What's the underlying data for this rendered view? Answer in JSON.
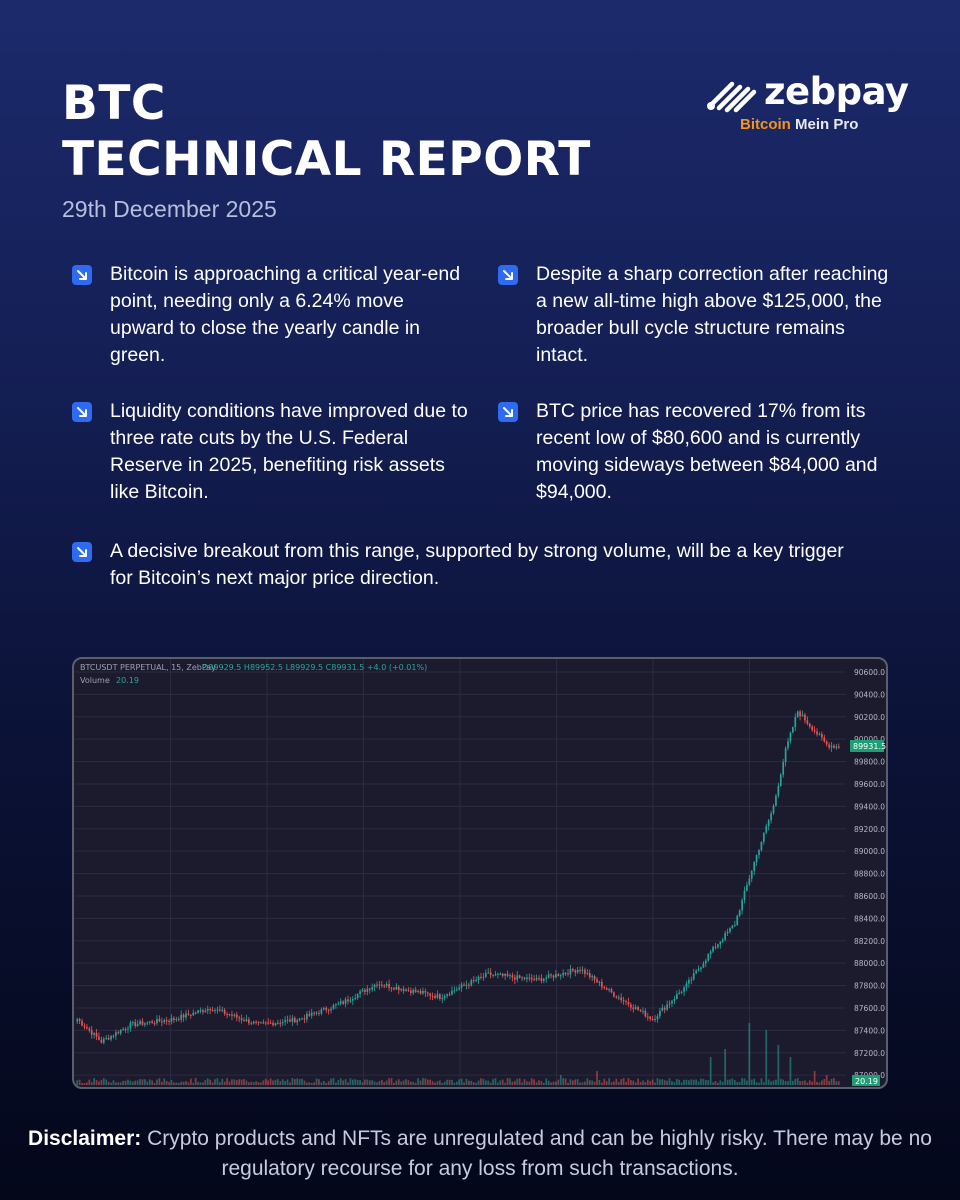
{
  "header": {
    "title_line1": "BTC",
    "title_line2": "TECHNICAL REPORT",
    "date": "29th December 2025"
  },
  "brand": {
    "name": "zebpay",
    "tagline_highlight": "Bitcoin",
    "tagline_rest": " Mein Pro",
    "accent": "#f7931a"
  },
  "bullets": [
    "Bitcoin is approaching a critical year-end point, needing only a 6.24% move upward to close the yearly candle in green.",
    "Despite a sharp correction after reaching a new all-time high above $125,000, the broader bull cycle structure remains intact.",
    "Liquidity conditions have improved due to three rate cuts by the U.S. Federal Reserve in 2025, benefiting risk assets like Bitcoin.",
    "BTC price has recovered 17% from its recent low of $80,600 and is currently moving sideways between $84,000 and $94,000.",
    "A decisive breakout from this range, supported by strong volume, will be a key trigger for Bitcoin’s next major price direction."
  ],
  "bullet_icon": "arrow-down-right-icon",
  "chart_data": {
    "type": "candlestick",
    "header_text": "BTCUSDT PERPETUAL, 15, ZebPay",
    "ohlc_text": "O89929.5 H89952.5 L89929.5 C89931.5 +4.0 (+0.01%)",
    "volume_label": "Volume",
    "volume_value": "20.19",
    "last_price_label": "89931.5",
    "y_ticks": [
      87000,
      87200,
      87400,
      87600,
      87800,
      88000,
      88200,
      88400,
      88600,
      88800,
      89000,
      89200,
      89400,
      89600,
      89800,
      90000,
      90200,
      90400,
      90600
    ],
    "ylim": [
      86930,
      90680
    ],
    "up_color": "#26a69a",
    "down_color": "#ef5350",
    "anchors": [
      [
        0,
        87500
      ],
      [
        10,
        87300
      ],
      [
        22,
        87450
      ],
      [
        40,
        87500
      ],
      [
        55,
        87600
      ],
      [
        75,
        87450
      ],
      [
        92,
        87500
      ],
      [
        110,
        87650
      ],
      [
        124,
        87820
      ],
      [
        150,
        87700
      ],
      [
        170,
        87900
      ],
      [
        190,
        87850
      ],
      [
        208,
        87950
      ],
      [
        220,
        87750
      ],
      [
        238,
        87500
      ],
      [
        252,
        87800
      ],
      [
        262,
        88100
      ],
      [
        272,
        88350
      ],
      [
        280,
        88900
      ],
      [
        288,
        89400
      ],
      [
        293,
        89900
      ],
      [
        298,
        90250
      ],
      [
        304,
        90100
      ],
      [
        310,
        89950
      ],
      [
        315,
        89931.5
      ]
    ],
    "volume_spikes": [
      [
        200,
        10
      ],
      [
        215,
        14
      ],
      [
        262,
        28
      ],
      [
        268,
        36
      ],
      [
        278,
        62
      ],
      [
        285,
        55
      ],
      [
        290,
        40
      ],
      [
        295,
        28
      ],
      [
        305,
        14
      ],
      [
        310,
        10
      ]
    ]
  },
  "disclaimer": {
    "label": "Disclaimer:",
    "text": " Crypto products and NFTs are unregulated and can be highly risky. There may be no regulatory recourse for any loss from such transactions."
  }
}
